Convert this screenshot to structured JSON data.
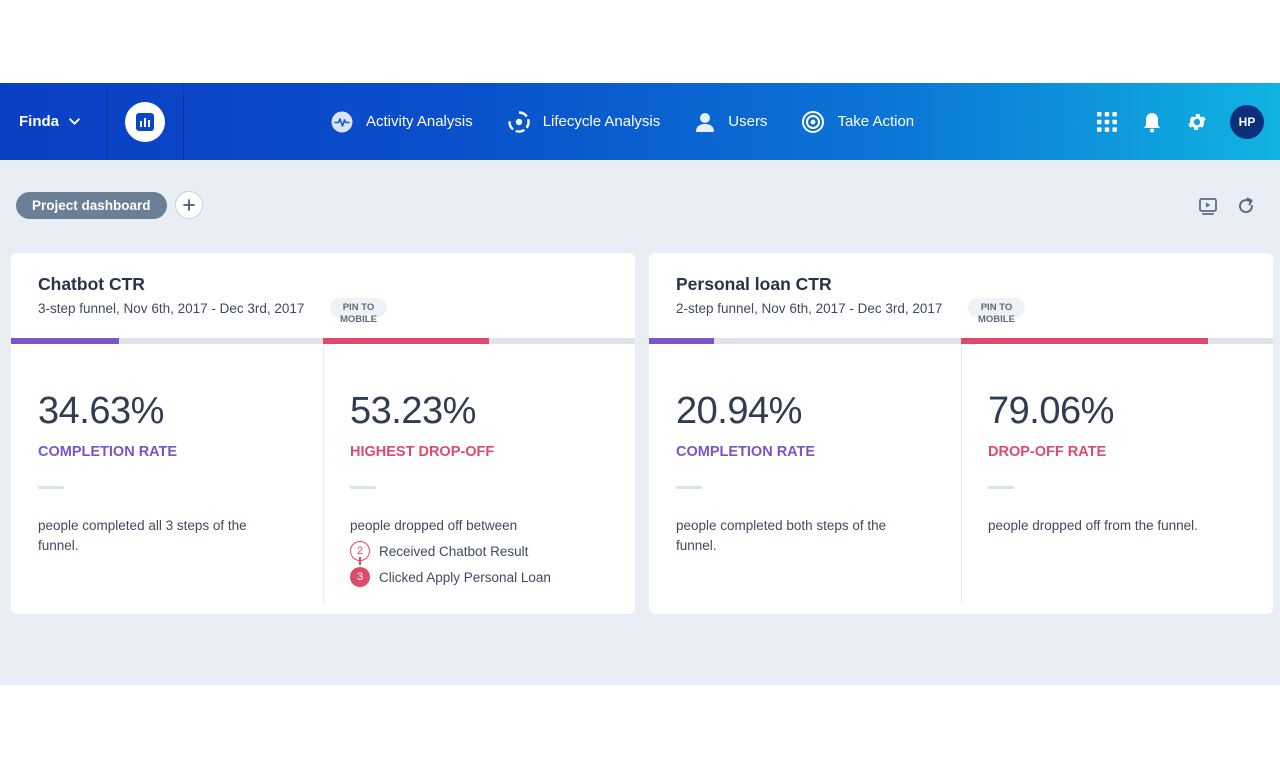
{
  "app": {
    "project_name": "Finda",
    "user_initials": "HP"
  },
  "nav": {
    "items": [
      {
        "label": "Activity Analysis",
        "icon": "activity-icon"
      },
      {
        "label": "Lifecycle Analysis",
        "icon": "lifecycle-icon"
      },
      {
        "label": "Users",
        "icon": "user-icon"
      },
      {
        "label": "Take Action",
        "icon": "target-icon"
      }
    ]
  },
  "toolbar": {
    "dashboard_label": "Project dashboard"
  },
  "colors": {
    "purple": "#7a55c8",
    "red": "#dc4b6c"
  },
  "cards": [
    {
      "title": "Chatbot CTR",
      "subtitle": "3-step funnel, Nov 6th, 2017 - Dec 3rd, 2017",
      "pin_line1": "PIN TO",
      "pin_line2": "MOBILE",
      "left": {
        "value": "34.63%",
        "label": "COMPLETION RATE",
        "description": "people completed all 3 steps of the funnel.",
        "bar_fill_fraction": 0.346
      },
      "right": {
        "value": "53.23%",
        "label": "HIGHEST DROP-OFF",
        "description": "people dropped off between",
        "bar_fill_fraction": 0.532,
        "steps": [
          {
            "num": "2",
            "label": "Received Chatbot Result"
          },
          {
            "num": "3",
            "label": "Clicked Apply Personal Loan"
          }
        ]
      }
    },
    {
      "title": "Personal loan CTR",
      "subtitle": "2-step funnel, Nov 6th, 2017 - Dec 3rd, 2017",
      "pin_line1": "PIN TO",
      "pin_line2": "MOBILE",
      "left": {
        "value": "20.94%",
        "label": "COMPLETION RATE",
        "description": "people completed both steps of the funnel.",
        "bar_fill_fraction": 0.209
      },
      "right": {
        "value": "79.06%",
        "label": "DROP-OFF RATE",
        "description": "people dropped off from the funnel.",
        "bar_fill_fraction": 0.791
      }
    }
  ]
}
